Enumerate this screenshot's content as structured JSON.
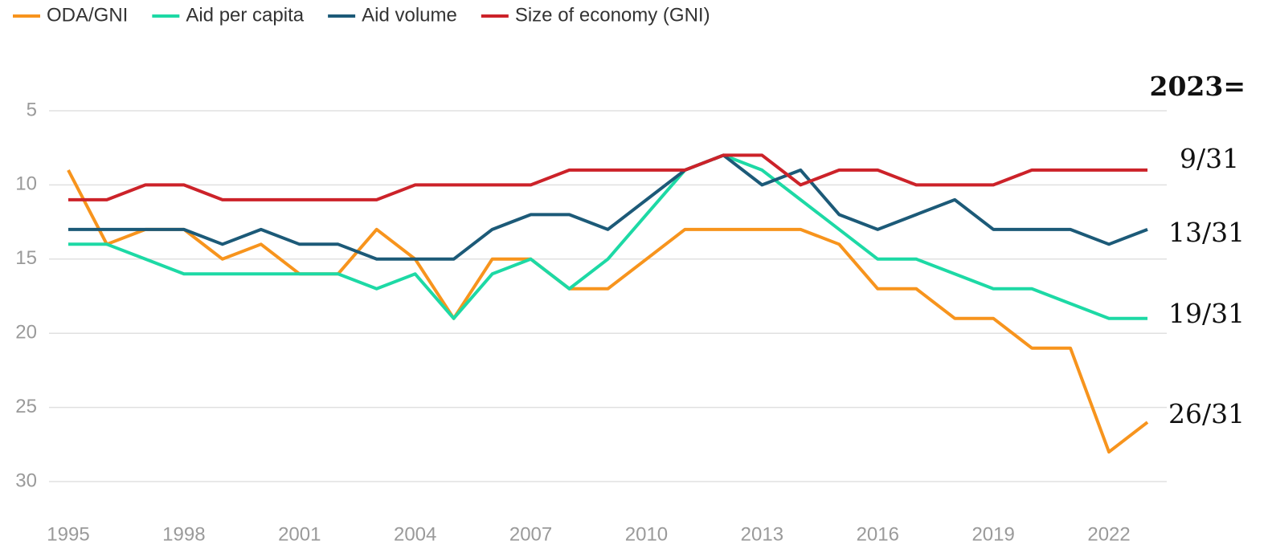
{
  "chart_data": {
    "type": "line",
    "x": [
      1995,
      1996,
      1997,
      1998,
      1999,
      2000,
      2001,
      2002,
      2003,
      2004,
      2005,
      2006,
      2007,
      2008,
      2009,
      2010,
      2011,
      2012,
      2013,
      2014,
      2015,
      2016,
      2017,
      2018,
      2019,
      2020,
      2021,
      2022,
      2023
    ],
    "series": [
      {
        "name": "ODA/GNI",
        "color": "#f7941d",
        "values": [
          9,
          14,
          13,
          13,
          15,
          14,
          16,
          16,
          13,
          15,
          19,
          15,
          15,
          17,
          17,
          15,
          13,
          13,
          13,
          13,
          14,
          17,
          17,
          19,
          19,
          21,
          21,
          28,
          26
        ]
      },
      {
        "name": "Aid per capita",
        "color": "#1dd9a5",
        "values": [
          14,
          14,
          15,
          16,
          16,
          16,
          16,
          16,
          17,
          16,
          19,
          16,
          15,
          17,
          15,
          12,
          9,
          8,
          9,
          11,
          13,
          15,
          15,
          16,
          17,
          17,
          18,
          19,
          19
        ]
      },
      {
        "name": "Aid volume",
        "color": "#1c5a78",
        "values": [
          13,
          13,
          13,
          13,
          14,
          13,
          14,
          14,
          15,
          15,
          15,
          13,
          12,
          12,
          13,
          11,
          9,
          8,
          10,
          9,
          12,
          13,
          12,
          11,
          13,
          13,
          13,
          14,
          13
        ]
      },
      {
        "name": "Size of economy (GNI)",
        "color": "#cc2229",
        "values": [
          11,
          11,
          10,
          10,
          11,
          11,
          11,
          11,
          11,
          10,
          10,
          10,
          10,
          9,
          9,
          9,
          9,
          8,
          8,
          10,
          9,
          9,
          10,
          10,
          10,
          9,
          9,
          9,
          9
        ]
      }
    ],
    "xlim": [
      1994.5,
      2023.5
    ],
    "xticks": [
      1995,
      1998,
      2001,
      2004,
      2007,
      2010,
      2013,
      2016,
      2019,
      2022
    ],
    "ylim": [
      3,
      32
    ],
    "yticks": [
      5,
      10,
      15,
      20,
      25,
      30
    ],
    "y_inverted": true,
    "grid": true,
    "legend": "top-left",
    "annotations": [
      "2023=",
      "9/31",
      "13/31",
      "19/31",
      "26/31"
    ]
  }
}
